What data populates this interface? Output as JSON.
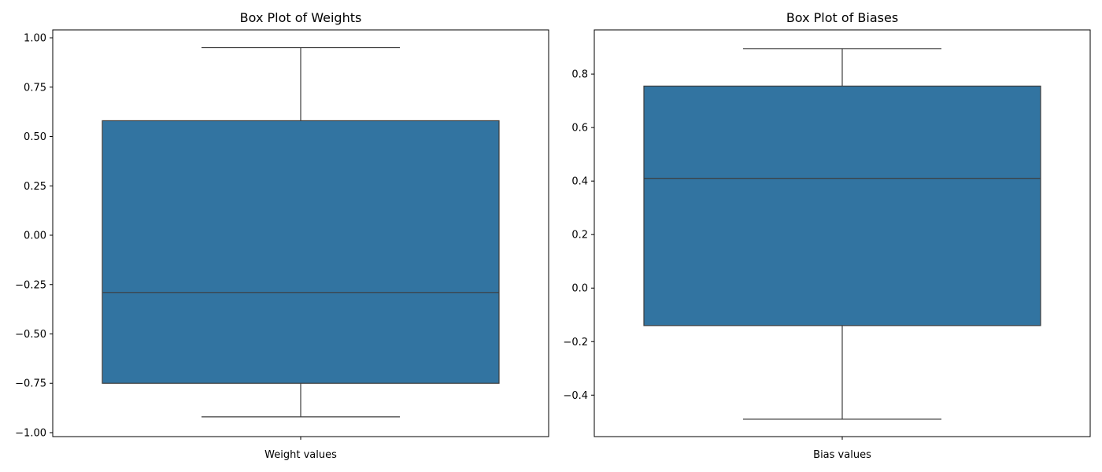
{
  "colors": {
    "box_fill": "#3274a1",
    "line": "#3d3d3d",
    "axes": "#000000",
    "background": "#ffffff"
  },
  "chart_data": [
    {
      "type": "box",
      "title": "Box Plot of Weights",
      "xlabel": "Weight values",
      "ylabel": "",
      "ylim": [
        -1.02,
        1.04
      ],
      "yticks": [
        -1.0,
        -0.75,
        -0.5,
        -0.25,
        0.0,
        0.25,
        0.5,
        0.75,
        1.0
      ],
      "ytick_labels": [
        "−1.00",
        "−0.75",
        "−0.50",
        "−0.25",
        "0.00",
        "0.25",
        "0.50",
        "0.75",
        "1.00"
      ],
      "grid": false,
      "box": {
        "whisker_low": -0.92,
        "q1": -0.75,
        "median": -0.29,
        "q3": 0.58,
        "whisker_high": 0.95
      }
    },
    {
      "type": "box",
      "title": "Box Plot of Biases",
      "xlabel": "Bias values",
      "ylabel": "",
      "ylim": [
        -0.555,
        0.965
      ],
      "yticks": [
        -0.4,
        -0.2,
        0.0,
        0.2,
        0.4,
        0.6,
        0.8
      ],
      "ytick_labels": [
        "−0.4",
        "−0.2",
        "0.0",
        "0.2",
        "0.4",
        "0.6",
        "0.8"
      ],
      "grid": false,
      "box": {
        "whisker_low": -0.49,
        "q1": -0.14,
        "median": 0.41,
        "q3": 0.755,
        "whisker_high": 0.895
      }
    }
  ]
}
